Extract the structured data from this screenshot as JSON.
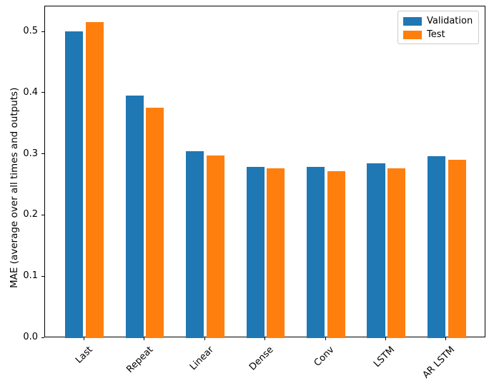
{
  "figure": {
    "background": "#ffffff",
    "spine_color": "#000000"
  },
  "chart_data": {
    "type": "bar",
    "title": "",
    "xlabel": "",
    "ylabel": "MAE (average over all times and outputs)",
    "categories": [
      "Last",
      "Repeat",
      "Linear",
      "Dense",
      "Conv",
      "LSTM",
      "AR LSTM"
    ],
    "series": [
      {
        "name": "Validation",
        "color": "#1f77b4",
        "values": [
          0.501,
          0.396,
          0.306,
          0.28,
          0.28,
          0.286,
          0.297
        ]
      },
      {
        "name": "Test",
        "color": "#ff7f0e",
        "values": [
          0.516,
          0.377,
          0.299,
          0.277,
          0.273,
          0.277,
          0.292
        ]
      }
    ],
    "yticks": [
      "0.0",
      "0.1",
      "0.2",
      "0.3",
      "0.4",
      "0.5"
    ],
    "ylim": [
      0,
      0.542
    ],
    "bar_width": 0.3,
    "bar_offsets": [
      -0.17,
      0.17
    ],
    "x_tick_rotation": 45,
    "grid": false,
    "legend": {
      "position": "upper right"
    }
  }
}
